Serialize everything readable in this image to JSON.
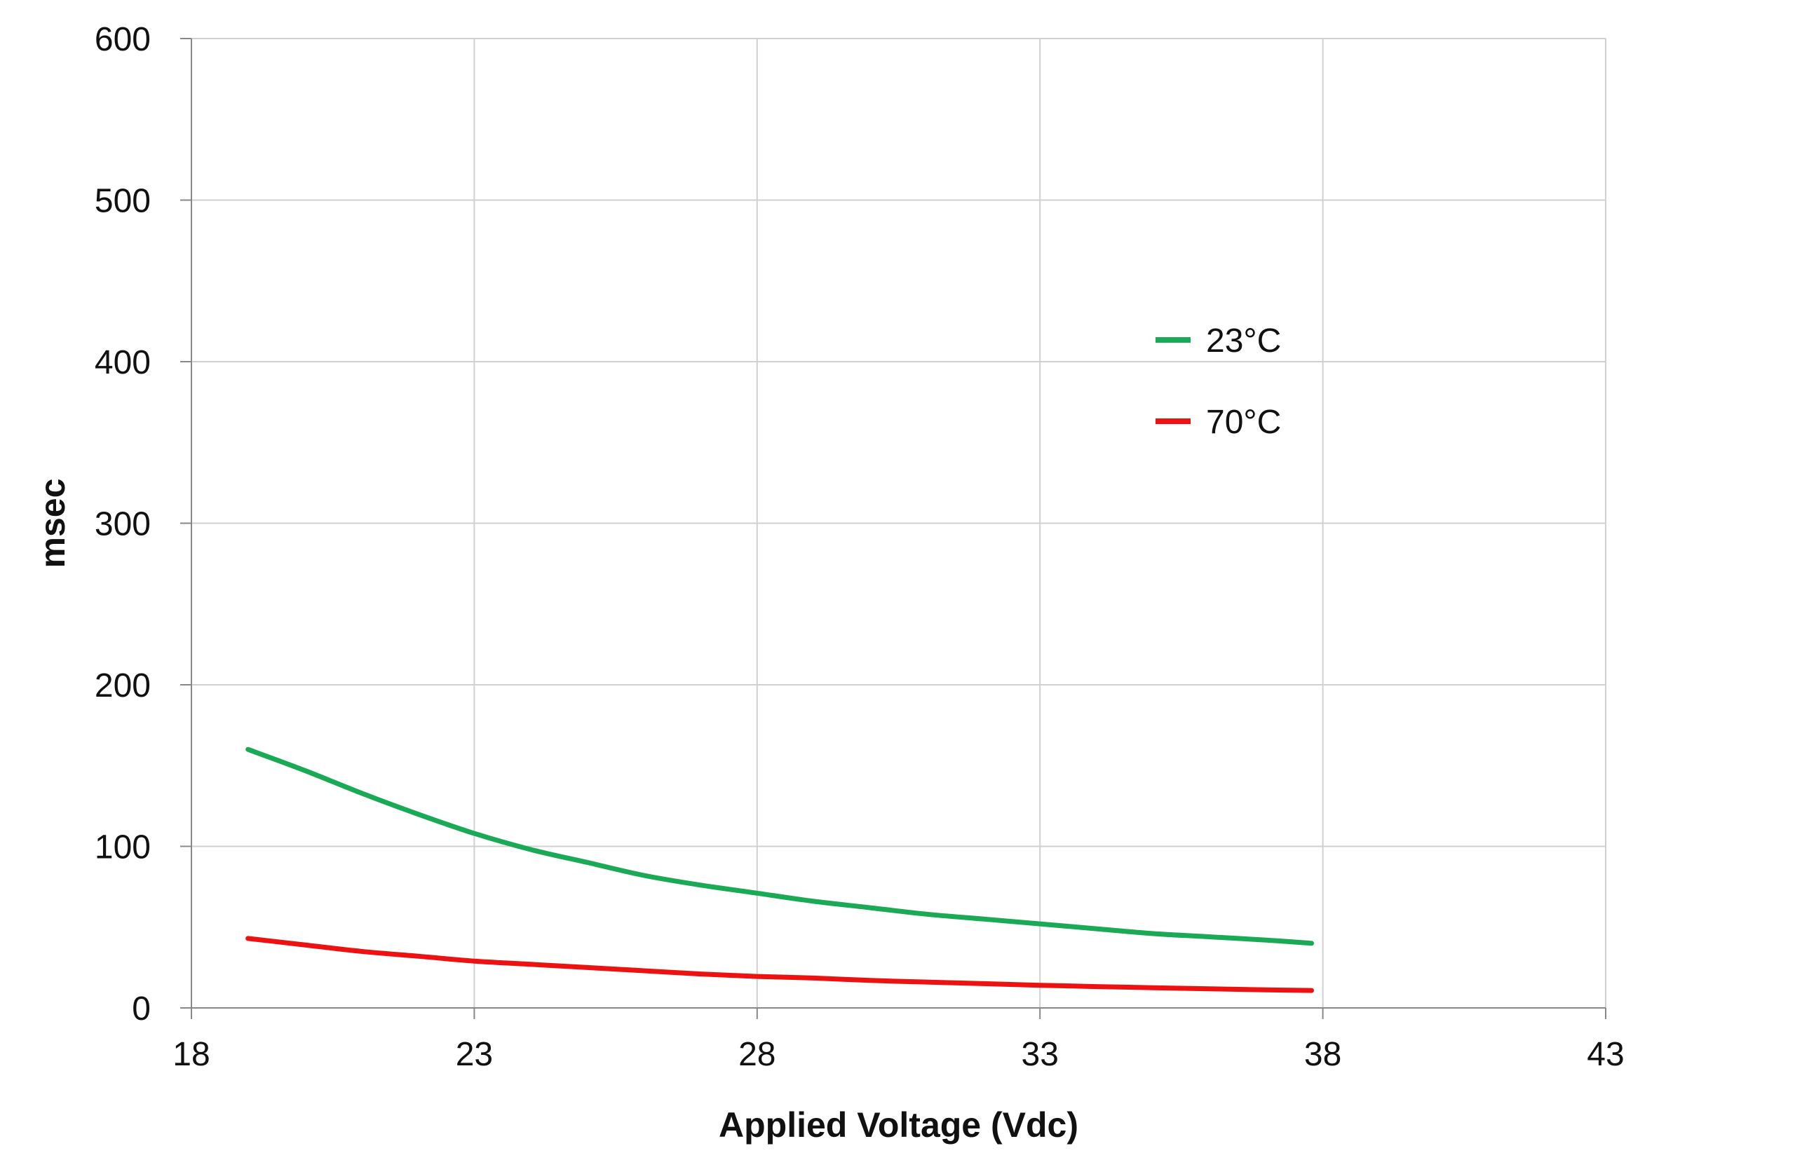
{
  "chart_data": {
    "type": "line",
    "title": "",
    "xlabel": "Applied Voltage (Vdc)",
    "ylabel": "msec",
    "xlim": [
      18,
      43
    ],
    "ylim": [
      0,
      600
    ],
    "xticks": [
      18,
      23,
      28,
      33,
      38,
      43
    ],
    "yticks": [
      0,
      100,
      200,
      300,
      400,
      500,
      600
    ],
    "xtick_labels": [
      "18",
      "23",
      "28",
      "33",
      "38",
      "43"
    ],
    "ytick_labels": [
      "0",
      "100",
      "200",
      "300",
      "400",
      "500",
      "600"
    ],
    "grid": true,
    "legend_position": "upper-right-inside",
    "series": [
      {
        "name": "23°C",
        "color": "#1aaa55",
        "x": [
          19,
          20,
          21,
          22,
          23,
          24,
          25,
          26,
          27,
          28,
          29,
          30,
          31,
          32,
          33,
          34,
          35,
          36,
          37,
          37.8
        ],
        "y": [
          160,
          147,
          133,
          120,
          108,
          98,
          90,
          82,
          76,
          71,
          66,
          62,
          58,
          55,
          52,
          49,
          46,
          44,
          42,
          40
        ]
      },
      {
        "name": "70°C",
        "color": "#ee1111",
        "x": [
          19,
          20,
          21,
          22,
          23,
          24,
          25,
          26,
          27,
          28,
          29,
          30,
          31,
          32,
          33,
          34,
          35,
          36,
          37,
          37.8
        ],
        "y": [
          43,
          39,
          35,
          32,
          29,
          27,
          25,
          23,
          21,
          19.5,
          18.5,
          17,
          16,
          15,
          14,
          13.2,
          12.5,
          11.8,
          11.2,
          10.8
        ]
      }
    ]
  }
}
